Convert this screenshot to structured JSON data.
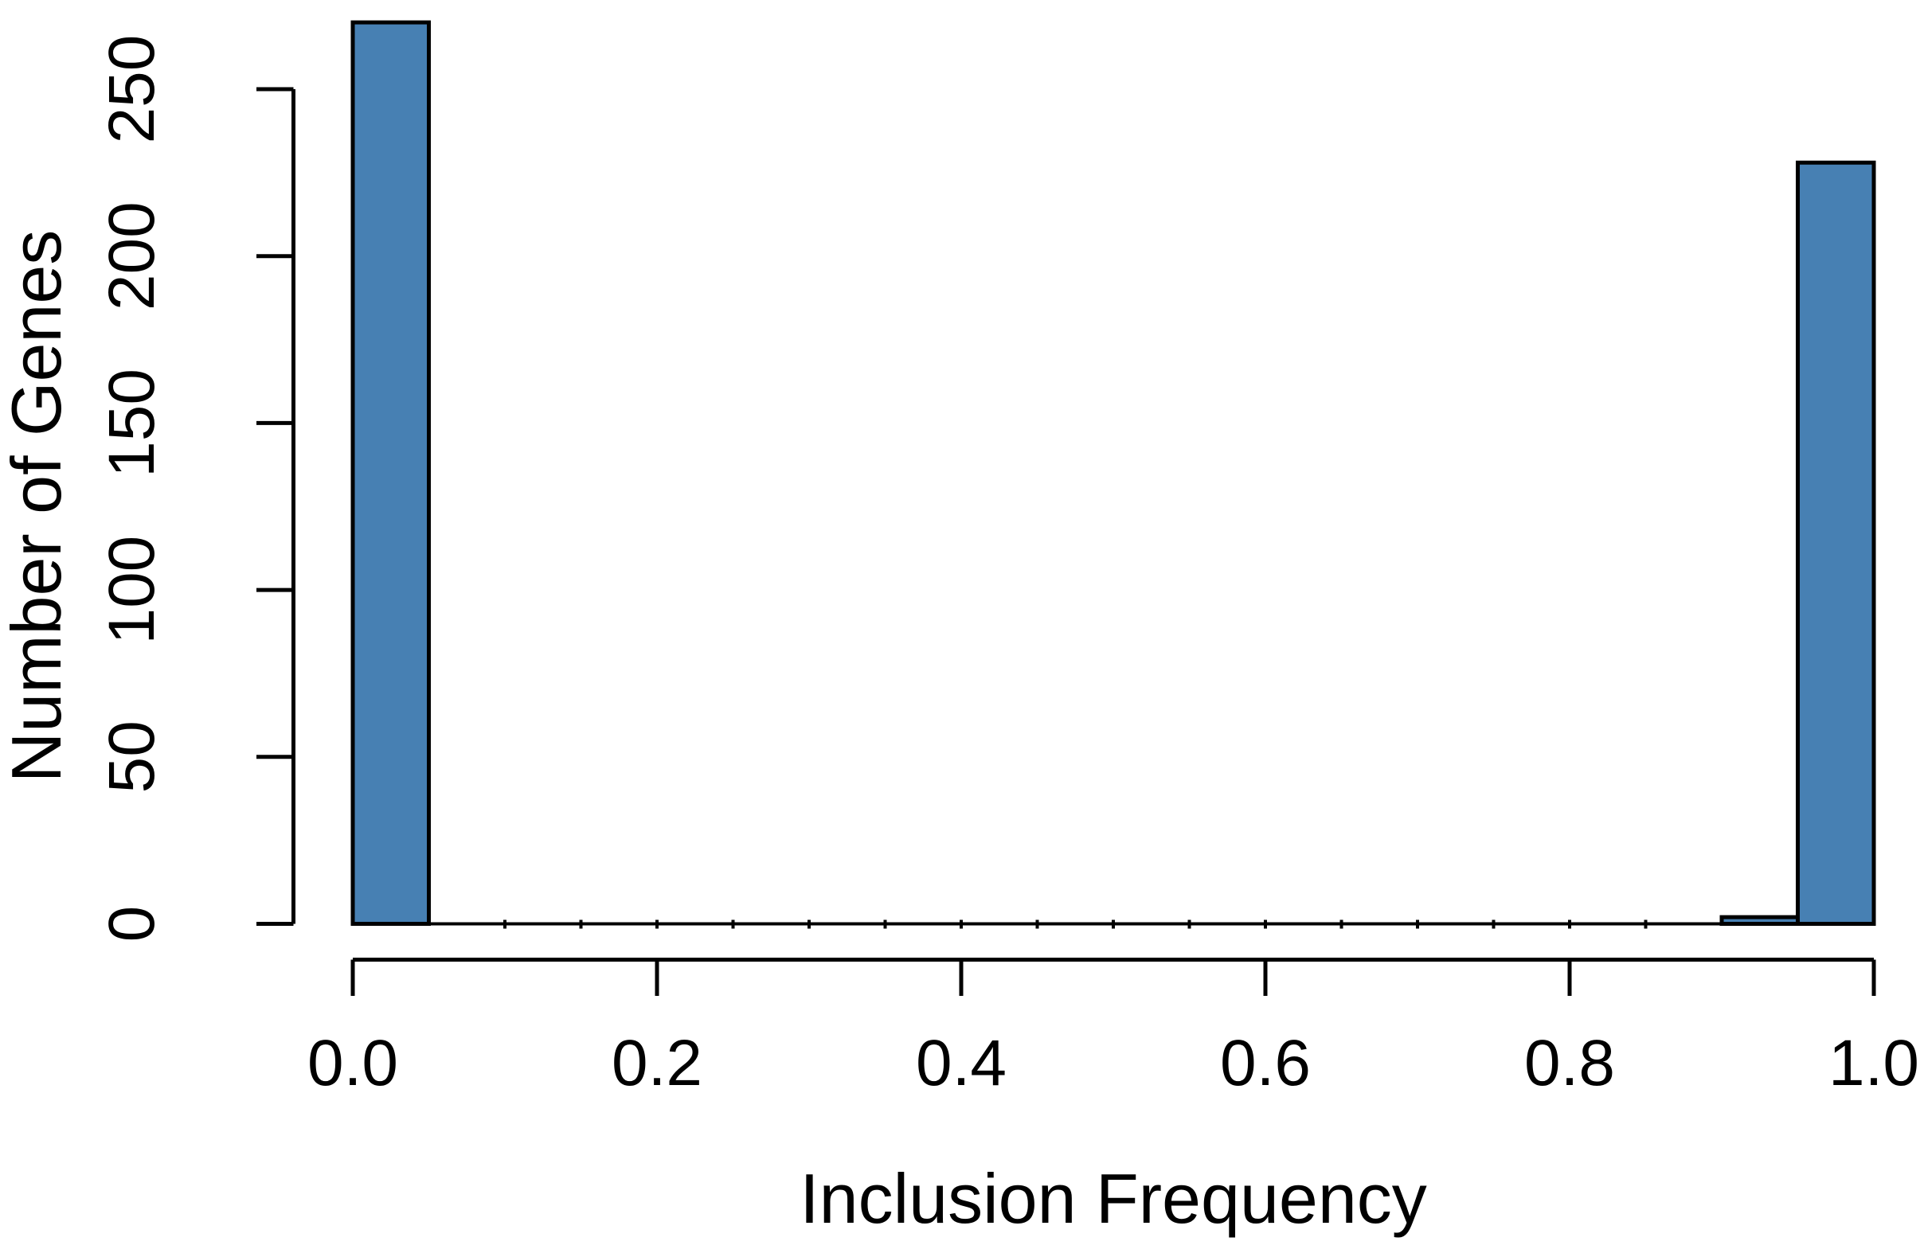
{
  "figure": {
    "background": "#ffffff"
  },
  "chart_data": {
    "type": "bar",
    "subtype": "histogram",
    "title": "",
    "xlabel": "Inclusion Frequency",
    "ylabel": "Number of Genes",
    "xlim": [
      0.0,
      1.0
    ],
    "ylim": [
      0,
      270
    ],
    "grid": false,
    "legend": false,
    "bin_width": 0.05,
    "x_ticks": {
      "values": [
        0.0,
        0.2,
        0.4,
        0.6,
        0.8,
        1.0
      ],
      "labels": [
        "0.0",
        "0.2",
        "0.4",
        "0.6",
        "0.8",
        "1.0"
      ]
    },
    "y_ticks": {
      "values": [
        0,
        50,
        100,
        150,
        200,
        250
      ],
      "labels": [
        "0",
        "50",
        "100",
        "150",
        "200",
        "250"
      ]
    },
    "bins": [
      {
        "range": [
          0.0,
          0.05
        ],
        "count": 270
      },
      {
        "range": [
          0.05,
          0.1
        ],
        "count": 0
      },
      {
        "range": [
          0.1,
          0.15
        ],
        "count": 0
      },
      {
        "range": [
          0.15,
          0.2
        ],
        "count": 0
      },
      {
        "range": [
          0.2,
          0.25
        ],
        "count": 0
      },
      {
        "range": [
          0.25,
          0.3
        ],
        "count": 0
      },
      {
        "range": [
          0.3,
          0.35
        ],
        "count": 0
      },
      {
        "range": [
          0.35,
          0.4
        ],
        "count": 0
      },
      {
        "range": [
          0.4,
          0.45
        ],
        "count": 0
      },
      {
        "range": [
          0.45,
          0.5
        ],
        "count": 0
      },
      {
        "range": [
          0.5,
          0.55
        ],
        "count": 0
      },
      {
        "range": [
          0.55,
          0.6
        ],
        "count": 0
      },
      {
        "range": [
          0.6,
          0.65
        ],
        "count": 0
      },
      {
        "range": [
          0.65,
          0.7
        ],
        "count": 0
      },
      {
        "range": [
          0.7,
          0.75
        ],
        "count": 0
      },
      {
        "range": [
          0.75,
          0.8
        ],
        "count": 0
      },
      {
        "range": [
          0.8,
          0.85
        ],
        "count": 0
      },
      {
        "range": [
          0.85,
          0.9
        ],
        "count": 0
      },
      {
        "range": [
          0.9,
          0.95
        ],
        "count": 2
      },
      {
        "range": [
          0.95,
          1.0
        ],
        "count": 228
      }
    ],
    "colors": {
      "bar_fill": "#4780B3",
      "bar_stroke": "#000000",
      "axis": "#000000",
      "text": "#000000"
    }
  }
}
